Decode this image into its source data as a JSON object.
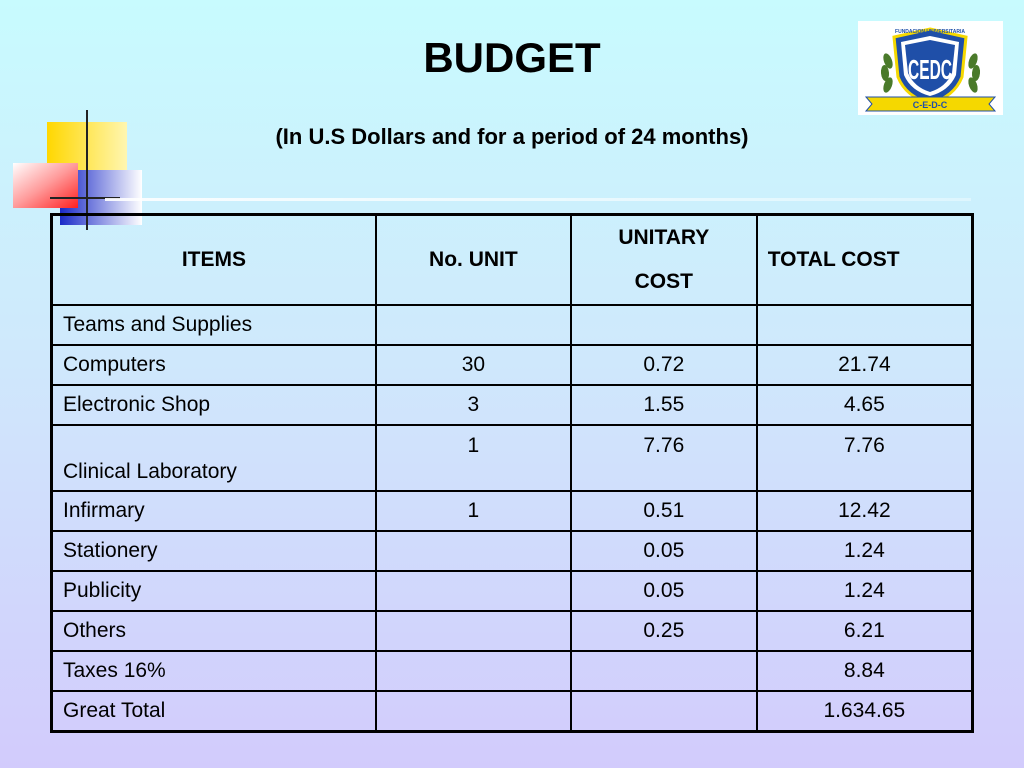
{
  "slide": {
    "title": "BUDGET",
    "subtitle": "(In U.S Dollars and for a period of 24 months)"
  },
  "logo": {
    "top_text": "FUNDACION UNIVERSITARIA",
    "initials": "CEDC",
    "banner": "C-E-D-C"
  },
  "table": {
    "headers": {
      "item": "ITEMS",
      "units": "No. UNIT",
      "unit_cost_line1": "UNITARY",
      "unit_cost_line2": "COST",
      "total": "TOTAL COST"
    },
    "rows": [
      {
        "item": "Teams and Supplies",
        "units": "",
        "unit_cost": "",
        "total": ""
      },
      {
        "item": "Computers",
        "units": "30",
        "unit_cost": "0.72",
        "total": "21.74"
      },
      {
        "item": "Electronic Shop",
        "units": "3",
        "unit_cost": "1.55",
        "total": "4.65"
      },
      {
        "item": "Clinical Laboratory",
        "units": "1",
        "unit_cost": "7.76",
        "total": "7.76"
      },
      {
        "item": "Infirmary",
        "units": "1",
        "unit_cost": "0.51",
        "total": "12.42"
      },
      {
        "item": "Stationery",
        "units": "",
        "unit_cost": "0.05",
        "total": "1.24"
      },
      {
        "item": "Publicity",
        "units": "",
        "unit_cost": "0.05",
        "total": "1.24"
      },
      {
        "item": "Others",
        "units": "",
        "unit_cost": "0.25",
        "total": "6.21"
      },
      {
        "item": "Taxes 16%",
        "units": "",
        "unit_cost": "",
        "total": "8.84"
      },
      {
        "item": "Great Total",
        "units": "",
        "unit_cost": "",
        "total": "1.634.65"
      }
    ]
  },
  "colors": {
    "background_top": "#c8fbfe",
    "background_bottom": "#d2cbfc",
    "deco_yellow": "#ffd700",
    "deco_red": "#ff3333",
    "deco_blue": "#2233cc",
    "logo_blue": "#1f4fa8",
    "logo_gold": "#f5d800",
    "logo_green": "#4a7a2a"
  }
}
